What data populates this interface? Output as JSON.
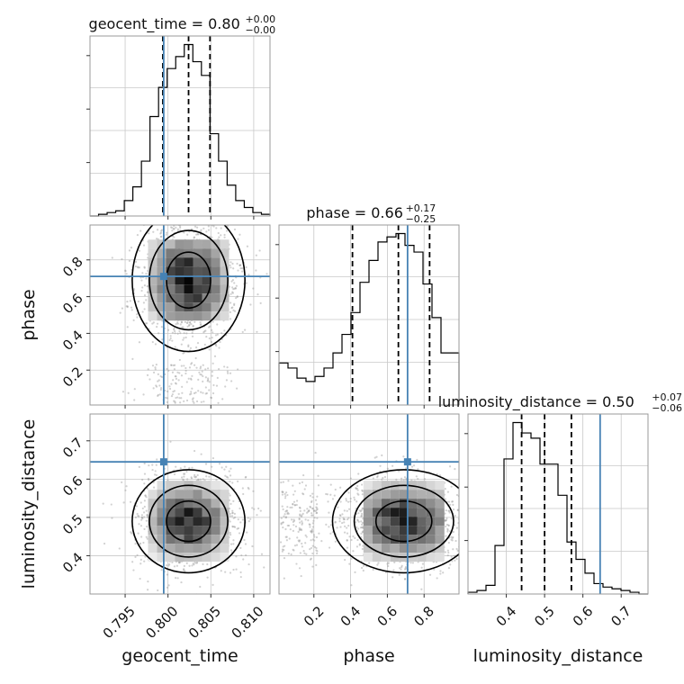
{
  "chart_data": {
    "type": "corner",
    "parameters": [
      "geocent_time",
      "phase",
      "luminosity_distance"
    ],
    "truths": {
      "geocent_time": 0.7995,
      "phase": 0.71,
      "luminosity_distance": 0.645
    },
    "ranges": {
      "geocent_time": [
        0.7909,
        0.8119
      ],
      "phase": [
        0.01,
        0.99
      ],
      "luminosity_distance": [
        0.3,
        0.77
      ]
    },
    "ticks": {
      "geocent_time": {
        "values": [
          0.795,
          0.8,
          0.805,
          0.81
        ],
        "labels": [
          "0.795",
          "0.800",
          "0.805",
          "0.810"
        ]
      },
      "phase": {
        "values": [
          0.2,
          0.4,
          0.6,
          0.8
        ],
        "labels": [
          "0.2",
          "0.4",
          "0.6",
          "0.8"
        ]
      },
      "luminosity_distance": {
        "values": [
          0.4,
          0.5,
          0.6,
          0.7
        ],
        "labels": [
          "0.4",
          "0.5",
          "0.6",
          "0.7"
        ]
      }
    },
    "titles": [
      {
        "param": "geocent_time",
        "text": "geocent_time = 0.80",
        "sup": "+0.00",
        "sub": "−0.00"
      },
      {
        "param": "phase",
        "text": "phase = 0.66",
        "sup": "+0.17",
        "sub": "−0.25"
      },
      {
        "param": "luminosity_distance",
        "text": "luminosity_distance = 0.50",
        "sup": "+0.07",
        "sub": "−0.06"
      }
    ],
    "quantiles": {
      "geocent_time": [
        0.7994,
        0.8024,
        0.8049
      ],
      "phase": [
        0.41,
        0.66,
        0.83
      ],
      "luminosity_distance": [
        0.44,
        0.5,
        0.57
      ]
    },
    "histograms": {
      "geocent_time": {
        "edges": [
          0.7909,
          0.7919,
          0.7929,
          0.7939,
          0.7949,
          0.7959,
          0.7969,
          0.7979,
          0.7989,
          0.7999,
          0.8009,
          0.8019,
          0.8029,
          0.8039,
          0.8049,
          0.8059,
          0.8069,
          0.8079,
          0.8089,
          0.8099,
          0.8109,
          0.8119
        ],
        "counts": [
          0,
          0.01,
          0.02,
          0.03,
          0.09,
          0.17,
          0.32,
          0.58,
          0.75,
          0.86,
          0.93,
          1.0,
          0.9,
          0.82,
          0.48,
          0.32,
          0.18,
          0.09,
          0.05,
          0.02,
          0.01
        ]
      },
      "phase": {
        "edges": [
          0.01,
          0.059,
          0.108,
          0.157,
          0.206,
          0.255,
          0.304,
          0.353,
          0.402,
          0.451,
          0.5,
          0.549,
          0.598,
          0.647,
          0.696,
          0.745,
          0.794,
          0.843,
          0.892,
          0.941,
          0.99
        ],
        "counts": [
          0.25,
          0.22,
          0.16,
          0.14,
          0.17,
          0.22,
          0.31,
          0.42,
          0.55,
          0.73,
          0.86,
          0.97,
          1.0,
          1.02,
          0.95,
          0.91,
          0.72,
          0.52,
          0.31,
          0.31
        ]
      },
      "luminosity_distance": {
        "edges": [
          0.3,
          0.3235,
          0.347,
          0.3705,
          0.394,
          0.4175,
          0.441,
          0.4645,
          0.488,
          0.5115,
          0.535,
          0.5585,
          0.582,
          0.6055,
          0.629,
          0.6525,
          0.676,
          0.6995,
          0.723,
          0.7465,
          0.77
        ],
        "counts": [
          0.01,
          0.02,
          0.05,
          0.28,
          0.78,
          0.99,
          0.93,
          0.9,
          0.75,
          0.75,
          0.57,
          0.3,
          0.2,
          0.12,
          0.06,
          0.04,
          0.03,
          0.02,
          0.01,
          0
        ]
      }
    },
    "grid": true
  }
}
